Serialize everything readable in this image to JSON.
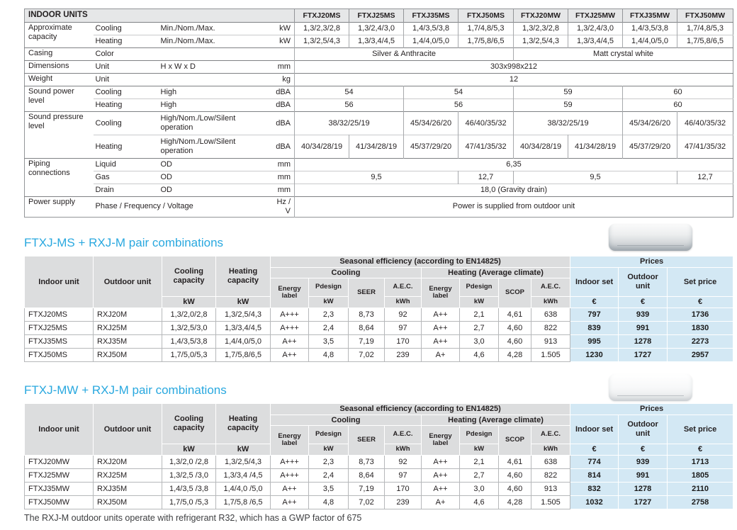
{
  "page": {
    "note": "The RXJ-M outdoor units operate with refrigerant R32, which has a GWP factor of 675"
  },
  "colors": {
    "accent_cyan": "#29a8df",
    "header_gray": "#e6e7e8",
    "pair_header_gray": "#dcddde",
    "price_blue": "#d3e8f4",
    "border_dark": "#7f8184",
    "border_light": "#b6b8ba",
    "text": "#231f20"
  },
  "spec_table": {
    "title": "INDOOR UNITS",
    "models": [
      "FTXJ20MS",
      "FTXJ25MS",
      "FTXJ35MS",
      "FTXJ50MS",
      "FTXJ20MW",
      "FTXJ25MW",
      "FTXJ35MW",
      "FTXJ50MW"
    ],
    "rows": [
      {
        "label": "Approximate capacity",
        "lrs": 2,
        "sub": "Cooling",
        "desc": "Min./Nom./Max.",
        "unit": "kW",
        "group": true,
        "cells": [
          [
            "1,3/2,3/2,8",
            1
          ],
          [
            "1,3/2,4/3,0",
            1
          ],
          [
            "1,4/3,5/3,8",
            1
          ],
          [
            "1,7/4,8/5,3",
            1
          ],
          [
            "1,3/2,3/2,8",
            1
          ],
          [
            "1,3/2,4/3,0",
            1
          ],
          [
            "1,4/3,5/3,8",
            1
          ],
          [
            "1,7/4,8/5,3",
            1
          ]
        ]
      },
      {
        "sub": "Heating",
        "desc": "Min./Nom./Max.",
        "unit": "kW",
        "cells": [
          [
            "1,3/2,5/4,3",
            1
          ],
          [
            "1,3/3,4/4,5",
            1
          ],
          [
            "1,4/4,0/5,0",
            1
          ],
          [
            "1,7/5,8/6,5",
            1
          ],
          [
            "1,3/2,5/4,3",
            1
          ],
          [
            "1,3/3,4/4,5",
            1
          ],
          [
            "1,4/4,0/5,0",
            1
          ],
          [
            "1,7/5,8/6,5",
            1
          ]
        ]
      },
      {
        "label": "Casing",
        "lrs": 1,
        "sub": "Color",
        "desc": "",
        "unit": "",
        "group": true,
        "cells": [
          [
            "Silver & Anthracite",
            4
          ],
          [
            "Matt crystal white",
            4
          ]
        ]
      },
      {
        "label": "Dimensions",
        "lrs": 1,
        "sub": "Unit",
        "desc": "H x W x D",
        "unit": "mm",
        "group": true,
        "cells": [
          [
            "303x998x212",
            8
          ]
        ]
      },
      {
        "label": "Weight",
        "lrs": 1,
        "sub": "Unit",
        "desc": "",
        "unit": "kg",
        "group": true,
        "cells": [
          [
            "12",
            8
          ]
        ]
      },
      {
        "label": "Sound power level",
        "lrs": 2,
        "sub": "Cooling",
        "desc": "High",
        "unit": "dBA",
        "group": true,
        "cells": [
          [
            "54",
            2
          ],
          [
            "54",
            2
          ],
          [
            "59",
            2
          ],
          [
            "60",
            2
          ]
        ]
      },
      {
        "sub": "Heating",
        "desc": "High",
        "unit": "dBA",
        "cells": [
          [
            "56",
            2
          ],
          [
            "56",
            2
          ],
          [
            "59",
            2
          ],
          [
            "60",
            2
          ]
        ]
      },
      {
        "label": "Sound pressure level",
        "lrs": 2,
        "sub": "Cooling",
        "desc": "High/Nom./Low/Silent operation",
        "unit": "dBA",
        "group": true,
        "tall": true,
        "cells": [
          [
            "38/32/25/19",
            2
          ],
          [
            "45/34/26/20",
            1
          ],
          [
            "46/40/35/32",
            1
          ],
          [
            "38/32/25/19",
            2
          ],
          [
            "45/34/26/20",
            1
          ],
          [
            "46/40/35/32",
            1
          ]
        ]
      },
      {
        "sub": "Heating",
        "desc": "High/Nom./Low/Silent operation",
        "unit": "dBA",
        "tall": true,
        "cells": [
          [
            "40/34/28/19",
            1
          ],
          [
            "41/34/28/19",
            1
          ],
          [
            "45/37/29/20",
            1
          ],
          [
            "47/41/35/32",
            1
          ],
          [
            "40/34/28/19",
            1
          ],
          [
            "41/34/28/19",
            1
          ],
          [
            "45/37/29/20",
            1
          ],
          [
            "47/41/35/32",
            1
          ]
        ]
      },
      {
        "label": "Piping connections",
        "lrs": 3,
        "sub": "Liquid",
        "desc": "OD",
        "unit": "mm",
        "group": true,
        "cells": [
          [
            "6,35",
            8
          ]
        ]
      },
      {
        "sub": "Gas",
        "desc": "OD",
        "unit": "mm",
        "cells": [
          [
            "9,5",
            3
          ],
          [
            "12,7",
            1
          ],
          [
            "9,5",
            3
          ],
          [
            "12,7",
            1
          ]
        ]
      },
      {
        "sub": "Drain",
        "desc": "OD",
        "unit": "mm",
        "cells": [
          [
            "18,0 (Gravity drain)",
            8
          ]
        ]
      },
      {
        "label": "Power supply",
        "lrs": 1,
        "sub": "Phase / Frequency / Voltage",
        "scs": 2,
        "unit": "Hz / V",
        "group": true,
        "cells": [
          [
            "Power is supplied from outdoor unit",
            8
          ]
        ]
      }
    ]
  },
  "pair_header": {
    "indoor_unit": "Indoor unit",
    "outdoor_unit": "Outdoor unit",
    "cooling_capacity": "Cooling capacity",
    "heating_capacity": "Heating capacity",
    "kw": "kW",
    "kwh": "kWh",
    "seasonal": "Seasonal efficiency (according to EN14825)",
    "cooling": "Cooling",
    "heating": "Heating (Average climate)",
    "energy_label": "Energy label",
    "pdesign": "Pdesign",
    "seer": "SEER",
    "scop": "SCOP",
    "aec": "A.E.C.",
    "prices": "Prices",
    "indoor_set": "Indoor set",
    "outdoor_unit_price": "Outdoor unit",
    "set_price": "Set price",
    "euro": "€"
  },
  "pair_tables": [
    {
      "heading": "FTXJ-MS + RXJ-M pair combinations",
      "product_image": "silver-wall-unit",
      "rows": [
        [
          "FTXJ20MS",
          "RXJ20M",
          "1,3/2,0/2,8",
          "1,3/2,5/4,3",
          "A+++",
          "2,3",
          "8,73",
          "92",
          "A++",
          "2,1",
          "4,61",
          "638",
          "797",
          "939",
          "1736"
        ],
        [
          "FTXJ25MS",
          "RXJ25M",
          "1,3/2,5/3,0",
          "1,3/3,4/4,5",
          "A+++",
          "2,4",
          "8,64",
          "97",
          "A++",
          "2,7",
          "4,60",
          "822",
          "839",
          "991",
          "1830"
        ],
        [
          "FTXJ35MS",
          "RXJ35M",
          "1,4/3,5/3,8",
          "1,4/4,0/5,0",
          "A++",
          "3,5",
          "7,19",
          "170",
          "A++",
          "3,0",
          "4,60",
          "913",
          "995",
          "1278",
          "2273"
        ],
        [
          "FTXJ50MS",
          "RXJ50M",
          "1,7/5,0/5,3",
          "1,7/5,8/6,5",
          "A++",
          "4,8",
          "7,02",
          "239",
          "A+",
          "4,6",
          "4,28",
          "1.505",
          "1230",
          "1727",
          "2957"
        ]
      ]
    },
    {
      "heading": "FTXJ-MW + RXJ-M pair combinations",
      "product_image": "white-wall-unit",
      "rows": [
        [
          "FTXJ20MW",
          "RXJ20M",
          "1,3/2,0 /2,8",
          "1,3/2,5/4,3",
          "A+++",
          "2,3",
          "8,73",
          "92",
          "A++",
          "2,1",
          "4,61",
          "638",
          "774",
          "939",
          "1713"
        ],
        [
          "FTXJ25MW",
          "RXJ25M",
          "1,3/2,5 /3,0",
          "1,3/3,4 /4,5",
          "A+++",
          "2,4",
          "8,64",
          "97",
          "A++",
          "2,7",
          "4,60",
          "822",
          "814",
          "991",
          "1805"
        ],
        [
          "FTXJ35MW",
          "RXJ35M",
          "1,4/3,5 /3,8",
          "1,4/4,0 /5,0",
          "A++",
          "3,5",
          "7,19",
          "170",
          "A++",
          "3,0",
          "4,60",
          "913",
          "832",
          "1278",
          "2110"
        ],
        [
          "FTXJ50MW",
          "RXJ50M",
          "1,7/5,0 /5,3",
          "1,7/5,8 /6,5",
          "A++",
          "4,8",
          "7,02",
          "239",
          "A+",
          "4,6",
          "4,28",
          "1.505",
          "1032",
          "1727",
          "2758"
        ]
      ]
    }
  ]
}
